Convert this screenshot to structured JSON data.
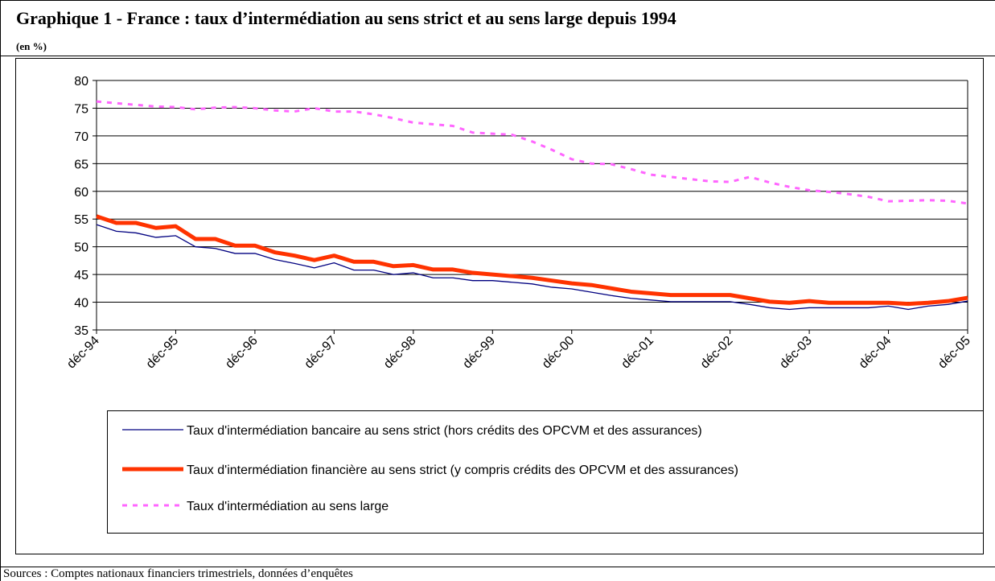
{
  "chart_data": {
    "type": "line",
    "title": "Graphique 1 - France : taux d’intermédiation au sens strict et au sens large depuis 1994",
    "subtitle": "(en %)",
    "source": "Sources : Comptes nationaux financiers trimestriels, données d’enquêtes",
    "categories": [
      "déc-94",
      null,
      null,
      null,
      "déc-95",
      null,
      null,
      null,
      "déc-96",
      null,
      null,
      null,
      "déc-97",
      null,
      null,
      null,
      "déc-98",
      null,
      null,
      null,
      "déc-99",
      null,
      null,
      null,
      "déc-00",
      null,
      null,
      null,
      "déc-01",
      null,
      null,
      null,
      "déc-02",
      null,
      null,
      null,
      "déc-03",
      null,
      null,
      null,
      "déc-04",
      null,
      null,
      null,
      "déc-05"
    ],
    "ylim": [
      35,
      80
    ],
    "yticks": [
      35,
      40,
      45,
      50,
      55,
      60,
      65,
      70,
      75,
      80
    ],
    "grid": true,
    "legend": "bottom",
    "series": [
      {
        "name": "Taux d'intermédiation bancaire au sens strict (hors crédits des OPCVM et des assurances)",
        "color": "#000080",
        "style": "thin",
        "values": [
          54,
          52.8,
          52.5,
          51.7,
          52,
          50,
          49.7,
          48.8,
          48.8,
          47.7,
          47,
          46.2,
          47.1,
          45.8,
          45.8,
          45,
          45.3,
          44.4,
          44.4,
          43.9,
          43.9,
          43.6,
          43.3,
          42.7,
          42.4,
          41.8,
          41.2,
          40.7,
          40.4,
          40.1,
          40.1,
          40.1,
          40.1,
          39.6,
          39,
          38.7,
          39,
          39,
          39,
          39,
          39.3,
          38.7,
          39.3,
          39.6,
          40.2
        ]
      },
      {
        "name": "Taux d'intermédiation financière au sens strict (y compris crédits des OPCVM et des assurances)",
        "color": "#ff3300",
        "style": "thick",
        "values": [
          55.5,
          54.3,
          54.3,
          53.4,
          53.7,
          51.4,
          51.4,
          50.2,
          50.2,
          49,
          48.4,
          47.6,
          48.4,
          47.3,
          47.3,
          46.5,
          46.7,
          45.9,
          45.9,
          45.3,
          45,
          44.7,
          44.4,
          43.9,
          43.4,
          43.1,
          42.5,
          41.9,
          41.6,
          41.3,
          41.3,
          41.3,
          41.3,
          40.7,
          40.1,
          39.9,
          40.2,
          39.9,
          39.9,
          39.9,
          39.9,
          39.7,
          39.9,
          40.2,
          40.8
        ]
      },
      {
        "name": "Taux d'intermédiation au sens large",
        "color": "#ff66ff",
        "style": "dashed",
        "values": [
          76.2,
          75.9,
          75.6,
          75.3,
          75.2,
          74.8,
          75.1,
          75.2,
          75,
          74.6,
          74.4,
          75,
          74.4,
          74.4,
          73.9,
          73.2,
          72.4,
          72.1,
          71.8,
          70.6,
          70.4,
          70.2,
          69,
          67.5,
          65.8,
          65,
          64.9,
          64,
          63,
          62.6,
          62.2,
          61.8,
          61.7,
          62.6,
          61.6,
          60.8,
          60.2,
          59.9,
          59.5,
          59,
          58.2,
          58.3,
          58.4,
          58.3,
          57.8
        ]
      }
    ]
  }
}
